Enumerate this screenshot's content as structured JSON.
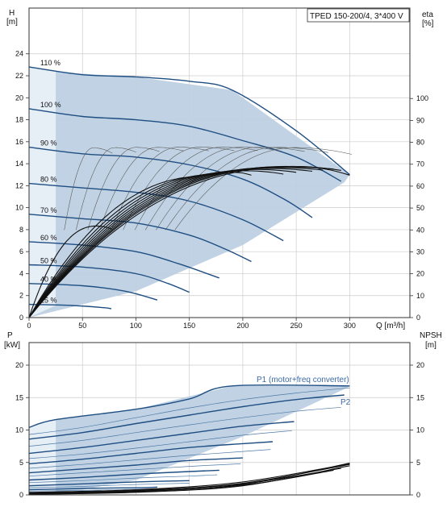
{
  "model_label": "TPED 150-200/4, 3*400 V",
  "colors": {
    "frame": "#333333",
    "grid": "#cccccc",
    "region_fill": "#bdd0e2",
    "region_light": "#e6eef6",
    "curve_blue": "#1f4e82",
    "thin_blue": "#4d79a6",
    "label_blue": "#3b6aa5",
    "black": "#111111",
    "grey": "#555555"
  },
  "chart_data": [
    {
      "type": "line",
      "name": "head",
      "ylabel_left": [
        "H",
        "[m]"
      ],
      "ylabel_right": [
        "eta",
        "[%]"
      ],
      "xlabel": "Q [m³/h]",
      "xlim": [
        0,
        310
      ],
      "ylim": [
        0,
        26
      ],
      "eta_ylim": [
        0,
        130
      ],
      "xticks": [
        0,
        50,
        100,
        150,
        200,
        250,
        300
      ],
      "yticks": [
        0,
        2,
        4,
        6,
        8,
        10,
        12,
        14,
        16,
        18,
        20,
        22,
        24
      ],
      "eta_ticks": [
        0,
        10,
        20,
        30,
        40,
        50,
        60,
        70,
        80,
        90,
        100
      ],
      "grid": true,
      "region": [
        [
          0,
          22.8
        ],
        [
          30,
          22.3
        ],
        [
          100,
          21.9
        ],
        [
          190,
          20.7
        ],
        [
          300,
          13.0
        ],
        [
          295,
          12.3
        ],
        [
          200,
          6.6
        ],
        [
          100,
          2.4
        ],
        [
          50,
          1.2
        ],
        [
          0,
          0
        ]
      ],
      "head_curves": [
        {
          "label": "110 %",
          "points": [
            [
              0,
              22.8
            ],
            [
              50,
              22.1
            ],
            [
              100,
              21.9
            ],
            [
              150,
              21.5
            ],
            [
              190,
              20.7
            ],
            [
              250,
              17.0
            ],
            [
              300,
              13.0
            ]
          ]
        },
        {
          "label": "100 %",
          "points": [
            [
              0,
              19.0
            ],
            [
              50,
              18.3
            ],
            [
              100,
              18.0
            ],
            [
              150,
              17.4
            ],
            [
              200,
              16.1
            ],
            [
              250,
              14.6
            ],
            [
              292,
              12.4
            ]
          ]
        },
        {
          "label": "90 %",
          "points": [
            [
              0,
              15.5
            ],
            [
              50,
              14.9
            ],
            [
              100,
              14.6
            ],
            [
              150,
              13.9
            ],
            [
              200,
              12.6
            ],
            [
              240,
              10.7
            ],
            [
              265,
              9.1
            ]
          ]
        },
        {
          "label": "80 %",
          "points": [
            [
              0,
              12.2
            ],
            [
              50,
              11.8
            ],
            [
              100,
              11.4
            ],
            [
              150,
              10.6
            ],
            [
              200,
              8.9
            ],
            [
              238,
              7.0
            ]
          ]
        },
        {
          "label": "70 %",
          "points": [
            [
              0,
              9.4
            ],
            [
              50,
              9.0
            ],
            [
              100,
              8.6
            ],
            [
              150,
              7.5
            ],
            [
              182,
              6.3
            ],
            [
              208,
              5.1
            ]
          ]
        },
        {
          "label": "60 %",
          "points": [
            [
              0,
              6.9
            ],
            [
              50,
              6.6
            ],
            [
              100,
              6.0
            ],
            [
              140,
              4.9
            ],
            [
              178,
              3.6
            ]
          ]
        },
        {
          "label": "50 %",
          "points": [
            [
              0,
              4.8
            ],
            [
              50,
              4.6
            ],
            [
              100,
              4.0
            ],
            [
              130,
              3.1
            ],
            [
              150,
              2.3
            ]
          ]
        },
        {
          "label": "40 %",
          "points": [
            [
              0,
              3.1
            ],
            [
              50,
              2.9
            ],
            [
              90,
              2.4
            ],
            [
              120,
              1.6
            ]
          ]
        },
        {
          "label": "25 %",
          "points": [
            [
              0,
              1.2
            ],
            [
              40,
              1.1
            ],
            [
              70,
              0.9
            ],
            [
              77,
              0.8
            ]
          ]
        }
      ],
      "eta_curves": [
        {
          "peak_q": 63,
          "peak_eta": 41.8,
          "end_q": 77,
          "end_eta": 40.5
        },
        {
          "peak_q": 165,
          "peak_eta": 64.5,
          "end_q": 150,
          "end_eta": 63.0
        },
        {
          "peak_q": 180,
          "peak_eta": 65.5,
          "end_q": 178,
          "end_eta": 64.5
        },
        {
          "peak_q": 192,
          "peak_eta": 66.3,
          "end_q": 208,
          "end_eta": 65.0
        },
        {
          "peak_q": 203,
          "peak_eta": 67.0,
          "end_q": 238,
          "end_eta": 65.5
        },
        {
          "peak_q": 213,
          "peak_eta": 67.6,
          "end_q": 250,
          "end_eta": 66.3
        },
        {
          "peak_q": 222,
          "peak_eta": 68.1,
          "end_q": 265,
          "end_eta": 66.8
        },
        {
          "peak_q": 230,
          "peak_eta": 68.5,
          "end_q": 275,
          "end_eta": 67.3
        },
        {
          "peak_q": 237,
          "peak_eta": 68.8,
          "end_q": 285,
          "end_eta": 67.8
        },
        {
          "peak_q": 243,
          "peak_eta": 69.0,
          "end_q": 292,
          "end_eta": 67.2
        },
        {
          "peak_q": 250,
          "peak_eta": 69.0,
          "end_q": 300,
          "end_eta": 65.0
        }
      ],
      "eta_thin_curves": [
        {
          "peak_q": 60,
          "peak_eta": 77.5,
          "end_q": 78,
          "end_eta": 75.0
        },
        {
          "peak_q": 80,
          "peak_eta": 77.6,
          "end_q": 100,
          "end_eta": 75.5
        },
        {
          "peak_q": 100,
          "peak_eta": 77.7,
          "end_q": 122,
          "end_eta": 75.8
        },
        {
          "peak_q": 120,
          "peak_eta": 77.7,
          "end_q": 145,
          "end_eta": 76.0
        },
        {
          "peak_q": 140,
          "peak_eta": 77.8,
          "end_q": 168,
          "end_eta": 76.1
        },
        {
          "peak_q": 160,
          "peak_eta": 77.8,
          "end_q": 192,
          "end_eta": 76.2
        },
        {
          "peak_q": 180,
          "peak_eta": 77.8,
          "end_q": 214,
          "end_eta": 76.2
        },
        {
          "peak_q": 198,
          "peak_eta": 77.8,
          "end_q": 236,
          "end_eta": 76.0
        },
        {
          "peak_q": 216,
          "peak_eta": 77.8,
          "end_q": 258,
          "end_eta": 75.8
        },
        {
          "peak_q": 232,
          "peak_eta": 77.7,
          "end_q": 280,
          "end_eta": 75.3
        },
        {
          "peak_q": 248,
          "peak_eta": 77.6,
          "end_q": 302,
          "end_eta": 74.5
        }
      ]
    },
    {
      "type": "line",
      "name": "power",
      "ylabel_left": [
        "P",
        "[kW]"
      ],
      "ylabel_right": [
        "NPSH",
        "[m]"
      ],
      "xlim": [
        0,
        310
      ],
      "ylim": [
        0,
        23
      ],
      "yticks": [
        0,
        5,
        10,
        15,
        20
      ],
      "npsh_ticks": [
        0,
        5,
        10,
        15,
        20
      ],
      "grid": true,
      "series_labels": [
        "P1 (motor+freq converter)",
        "P2"
      ],
      "region": [
        [
          0,
          10.4
        ],
        [
          25,
          11.6
        ],
        [
          100,
          13.2
        ],
        [
          190,
          16.8
        ],
        [
          300,
          16.8
        ],
        [
          300,
          16.7
        ],
        [
          200,
          9.0
        ],
        [
          100,
          2.3
        ],
        [
          50,
          0.8
        ],
        [
          0,
          0
        ]
      ],
      "p1_curves": [
        {
          "points": [
            [
              0,
              10.4
            ],
            [
              25,
              11.6
            ],
            [
              100,
              13.2
            ],
            [
              150,
              14.8
            ],
            [
              190,
              16.8
            ],
            [
              300,
              16.8
            ]
          ]
        },
        {
          "points": [
            [
              0,
              8.6
            ],
            [
              50,
              9.6
            ],
            [
              100,
              11.0
            ],
            [
              150,
              12.3
            ],
            [
              200,
              13.6
            ],
            [
              250,
              14.7
            ],
            [
              295,
              15.4
            ]
          ]
        },
        {
          "points": [
            [
              0,
              6.4
            ],
            [
              50,
              7.3
            ],
            [
              100,
              8.4
            ],
            [
              150,
              9.5
            ],
            [
              200,
              10.6
            ],
            [
              248,
              11.3
            ]
          ]
        },
        {
          "points": [
            [
              0,
              4.8
            ],
            [
              50,
              5.5
            ],
            [
              100,
              6.4
            ],
            [
              150,
              7.3
            ],
            [
              200,
              7.9
            ],
            [
              228,
              8.2
            ]
          ]
        },
        {
          "points": [
            [
              0,
              3.4
            ],
            [
              50,
              4.0
            ],
            [
              100,
              4.6
            ],
            [
              150,
              5.3
            ],
            [
              200,
              5.7
            ]
          ]
        },
        {
          "points": [
            [
              0,
              2.3
            ],
            [
              50,
              2.7
            ],
            [
              100,
              3.2
            ],
            [
              150,
              3.6
            ],
            [
              178,
              3.8
            ]
          ]
        },
        {
          "points": [
            [
              0,
              1.4
            ],
            [
              50,
              1.7
            ],
            [
              100,
              2.0
            ],
            [
              150,
              2.2
            ]
          ]
        },
        {
          "points": [
            [
              0,
              0.8
            ],
            [
              50,
              1.0
            ],
            [
              100,
              1.1
            ],
            [
              120,
              1.2
            ]
          ]
        },
        {
          "points": [
            [
              0,
              0.3
            ],
            [
              40,
              0.4
            ],
            [
              77,
              0.45
            ]
          ]
        }
      ],
      "p2_curves": [
        {
          "points": [
            [
              0,
              9.3
            ],
            [
              50,
              10.4
            ],
            [
              100,
              11.9
            ],
            [
              150,
              13.4
            ],
            [
              200,
              14.7
            ],
            [
              250,
              15.7
            ],
            [
              300,
              16.5
            ]
          ]
        },
        {
          "points": [
            [
              0,
              7.5
            ],
            [
              50,
              8.4
            ],
            [
              100,
              9.6
            ],
            [
              150,
              10.8
            ],
            [
              200,
              11.9
            ],
            [
              250,
              12.9
            ],
            [
              292,
              13.5
            ]
          ]
        },
        {
          "points": [
            [
              0,
              5.6
            ],
            [
              50,
              6.3
            ],
            [
              100,
              7.2
            ],
            [
              150,
              8.2
            ],
            [
              200,
              9.2
            ],
            [
              246,
              9.9
            ]
          ]
        },
        {
          "points": [
            [
              0,
              4.1
            ],
            [
              50,
              4.7
            ],
            [
              100,
              5.4
            ],
            [
              150,
              6.1
            ],
            [
              200,
              6.7
            ],
            [
              226,
              7.0
            ]
          ]
        },
        {
          "points": [
            [
              0,
              2.9
            ],
            [
              50,
              3.4
            ],
            [
              100,
              3.9
            ],
            [
              150,
              4.4
            ],
            [
              198,
              4.8
            ]
          ]
        },
        {
          "points": [
            [
              0,
              1.9
            ],
            [
              50,
              2.2
            ],
            [
              100,
              2.6
            ],
            [
              150,
              2.9
            ],
            [
              176,
              3.1
            ]
          ]
        },
        {
          "points": [
            [
              0,
              1.1
            ],
            [
              50,
              1.3
            ],
            [
              100,
              1.6
            ],
            [
              150,
              1.8
            ]
          ]
        },
        {
          "points": [
            [
              0,
              0.6
            ],
            [
              50,
              0.7
            ],
            [
              100,
              0.9
            ],
            [
              120,
              0.9
            ]
          ]
        }
      ],
      "npsh_curves": [
        {
          "points": [
            [
              0,
              0.2
            ],
            [
              100,
              0.5
            ],
            [
              200,
              1.6
            ],
            [
              300,
              4.9
            ]
          ]
        },
        {
          "points": [
            [
              0,
              0.3
            ],
            [
              100,
              0.7
            ],
            [
              200,
              1.8
            ],
            [
              300,
              4.7
            ]
          ]
        },
        {
          "points": [
            [
              0,
              0.1
            ],
            [
              100,
              0.4
            ],
            [
              200,
              1.4
            ],
            [
              300,
              4.5
            ]
          ]
        },
        {
          "points": [
            [
              0,
              0.4
            ],
            [
              100,
              0.8
            ],
            [
              200,
              2.0
            ],
            [
              300,
              4.8
            ]
          ]
        },
        {
          "points": [
            [
              0,
              0.2
            ],
            [
              100,
              0.6
            ],
            [
              200,
              1.7
            ],
            [
              292,
              4.1
            ]
          ]
        },
        {
          "points": [
            [
              0,
              0.1
            ],
            [
              100,
              0.5
            ],
            [
              200,
              1.5
            ],
            [
              285,
              3.8
            ]
          ]
        }
      ]
    }
  ]
}
